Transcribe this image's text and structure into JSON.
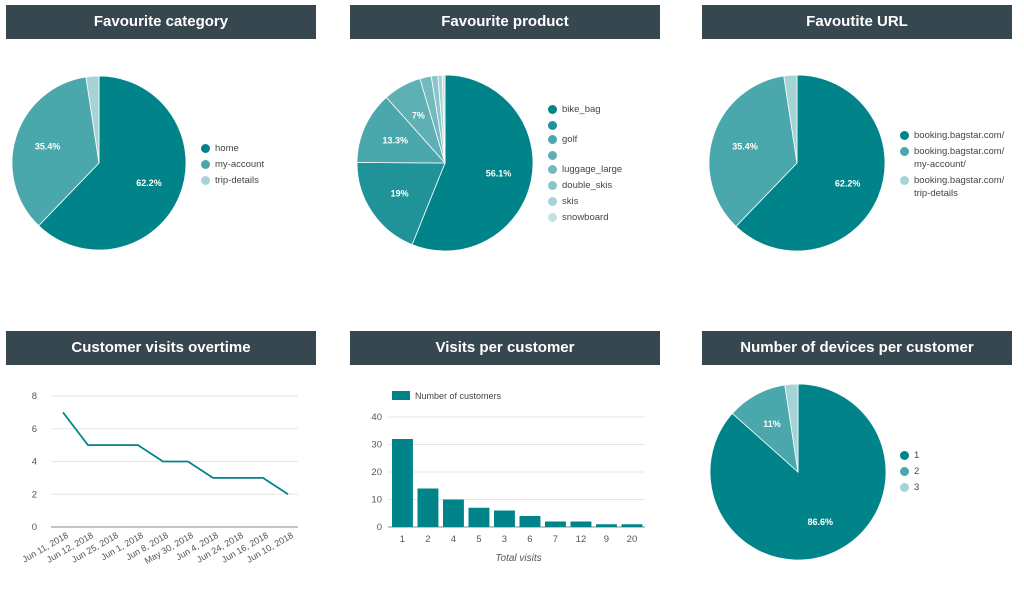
{
  "colors": {
    "header_bg": "#37474f",
    "header_text": "#ffffff",
    "series": [
      "#008489",
      "#1f9398",
      "#4aa7ac",
      "#5eb0b5",
      "#72babe",
      "#8ac6c9",
      "#a6d4d6",
      "#c0e2e3"
    ]
  },
  "panels": {
    "category": {
      "title": "Favourite category"
    },
    "product": {
      "title": "Favourite product"
    },
    "url": {
      "title": "Favoutite URL"
    },
    "visits_over_time": {
      "title": "Customer visits overtime"
    },
    "visits_per_customer": {
      "title": "Visits per customer"
    },
    "devices": {
      "title": "Number of devices per customer"
    }
  },
  "chart_data": [
    {
      "id": "category",
      "type": "pie",
      "title": "Favourite category",
      "labels": [
        "home",
        "my-account",
        "trip-details"
      ],
      "values": [
        62.2,
        35.4,
        2.4
      ],
      "slice_labels": [
        "62.2%",
        "35.4%",
        ""
      ],
      "legend": "right"
    },
    {
      "id": "product",
      "type": "pie",
      "title": "Favourite product",
      "labels": [
        "bike_bag",
        "",
        "golf",
        "",
        "luggage_large",
        "double_skis",
        "skis",
        "snowboard"
      ],
      "values": [
        56.1,
        19,
        13.3,
        7,
        2.1,
        1.2,
        0.8,
        0.5
      ],
      "slice_labels": [
        "56.1%",
        "19%",
        "13.3%",
        "7%",
        "",
        "",
        "",
        ""
      ],
      "legend": "right"
    },
    {
      "id": "url",
      "type": "pie",
      "title": "Favoutite URL",
      "labels": [
        "booking.bagstar.com/",
        "booking.bagstar.com/ my-account/",
        "booking.bagstar.com/ trip-details"
      ],
      "values": [
        62.2,
        35.4,
        2.4
      ],
      "slice_labels": [
        "62.2%",
        "35.4%",
        ""
      ],
      "legend": "right"
    },
    {
      "id": "visits_over_time",
      "type": "line",
      "title": "Customer visits overtime",
      "x": [
        "Jun 11, 2018",
        "Jun 12, 2018",
        "Jun 25, 2018",
        "Jun 1, 2018",
        "Jun 8, 2018",
        "May 30, 2018",
        "Jun 4, 2018",
        "Jun 24, 2018",
        "Jun 16, 2018",
        "Jun 10, 2018"
      ],
      "y": [
        7,
        5,
        5,
        5,
        4,
        4,
        3,
        3,
        3,
        2
      ],
      "ylim": [
        0,
        8
      ],
      "yticks": [
        0,
        2,
        4,
        6,
        8
      ],
      "grid": true
    },
    {
      "id": "visits_per_customer",
      "type": "bar",
      "title": "Visits per customer",
      "categories": [
        "1",
        "2",
        "4",
        "5",
        "3",
        "6",
        "7",
        "12",
        "9",
        "20"
      ],
      "series": [
        {
          "name": "Number of customers",
          "values": [
            32,
            14,
            10,
            7,
            6,
            4,
            2,
            2,
            1,
            1
          ]
        }
      ],
      "xlabel": "Total visits",
      "ylim": [
        0,
        40
      ],
      "yticks": [
        0,
        10,
        20,
        30,
        40
      ],
      "grid": true,
      "legend": "top-left"
    },
    {
      "id": "devices",
      "type": "pie",
      "title": "Number of devices per customer",
      "labels": [
        "1",
        "2",
        "3"
      ],
      "values": [
        86.6,
        11,
        2.4
      ],
      "slice_labels": [
        "86.6%",
        "11%",
        ""
      ],
      "legend": "right"
    }
  ]
}
